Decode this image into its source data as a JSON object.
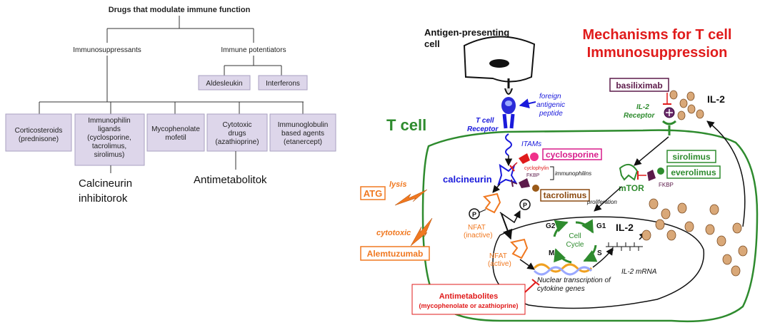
{
  "tree": {
    "title": "Drugs that modulate immune function",
    "branches": {
      "immunosuppressants": "Immunosuppressants",
      "immune_potentiators": "Immune potentiators"
    },
    "potentiator_boxes": [
      "Aldesleukin",
      "Interferons"
    ],
    "suppressant_boxes": [
      [
        "Corticosteroids",
        "(prednisone)"
      ],
      [
        "Immunophilin",
        "ligands",
        "(cyclosporine,",
        "tacrolimus,",
        "sirolimus)"
      ],
      [
        "Mycophenolate",
        "mofetil"
      ],
      [
        "Cytotoxic",
        "drugs",
        "(azathioprine)"
      ],
      [
        "Immunoglobulin",
        "based agents",
        "(etanercept)"
      ]
    ],
    "annotations": {
      "calcineurin": [
        "Calcineurin",
        "inhibitorok"
      ],
      "antimetabolitok": "Antimetabolitok"
    }
  },
  "mechanism": {
    "title": [
      "Mechanisms for T cell",
      "Immunosuppression"
    ],
    "apc_label": [
      "Antigen-presenting",
      "cell"
    ],
    "t_cell_label": "T cell",
    "tcr_label": [
      "T cell",
      "Receptor"
    ],
    "peptide_label": [
      "foreign",
      "antigenic",
      "peptide"
    ],
    "itams": "ITAMs",
    "calcineurin": "calcineurin",
    "cyclosporine": "cyclosporine",
    "cyclophylin": "cyclophylin",
    "fkbp": "FKBP",
    "immunophilins": "immunophilins",
    "tacrolimus": "tacrolimus",
    "atg": "ATG",
    "lysis": "lysis",
    "cytotoxic": "cytotoxic",
    "alemtuzumab": "Alemtuzumab",
    "nfat_inactive": [
      "NFAT",
      "(inactive)"
    ],
    "nfat_active": [
      "NFAT",
      "(active)"
    ],
    "phosphate": "P",
    "basiliximab": "basiliximab",
    "il2_top": "IL-2",
    "il2_receptor": [
      "IL-2",
      "Receptor"
    ],
    "sirolimus": "sirolimus",
    "everolimus": "everolimus",
    "fkbp2": "FKBP",
    "mtor": "mTOR",
    "proliferation": "proliferation",
    "cell_cycle": [
      "Cell",
      "Cycle"
    ],
    "phases": {
      "g2": "G2",
      "g1": "G1",
      "m": "M",
      "s": "S"
    },
    "il2_nucleus": "IL-2",
    "il2_mrna": "IL-2 mRNA",
    "nuclear_transcription": [
      "Nuclear transcription of",
      "cytokine genes"
    ],
    "antimetabolites": [
      "Antimetabolites",
      "(mycophenolate or azathioprine)"
    ]
  },
  "colors": {
    "title_red": "#e01b1b",
    "t_cell_green": "#2e8b2e",
    "receptor_blue": "#1a1adb",
    "cyclosporine_magenta": "#d81b8a",
    "tacrolimus_brown": "#8b4a10",
    "atg_orange": "#f07820",
    "basiliximab_purple": "#5c1a4a",
    "box_lavender": "#ddd6ea"
  }
}
